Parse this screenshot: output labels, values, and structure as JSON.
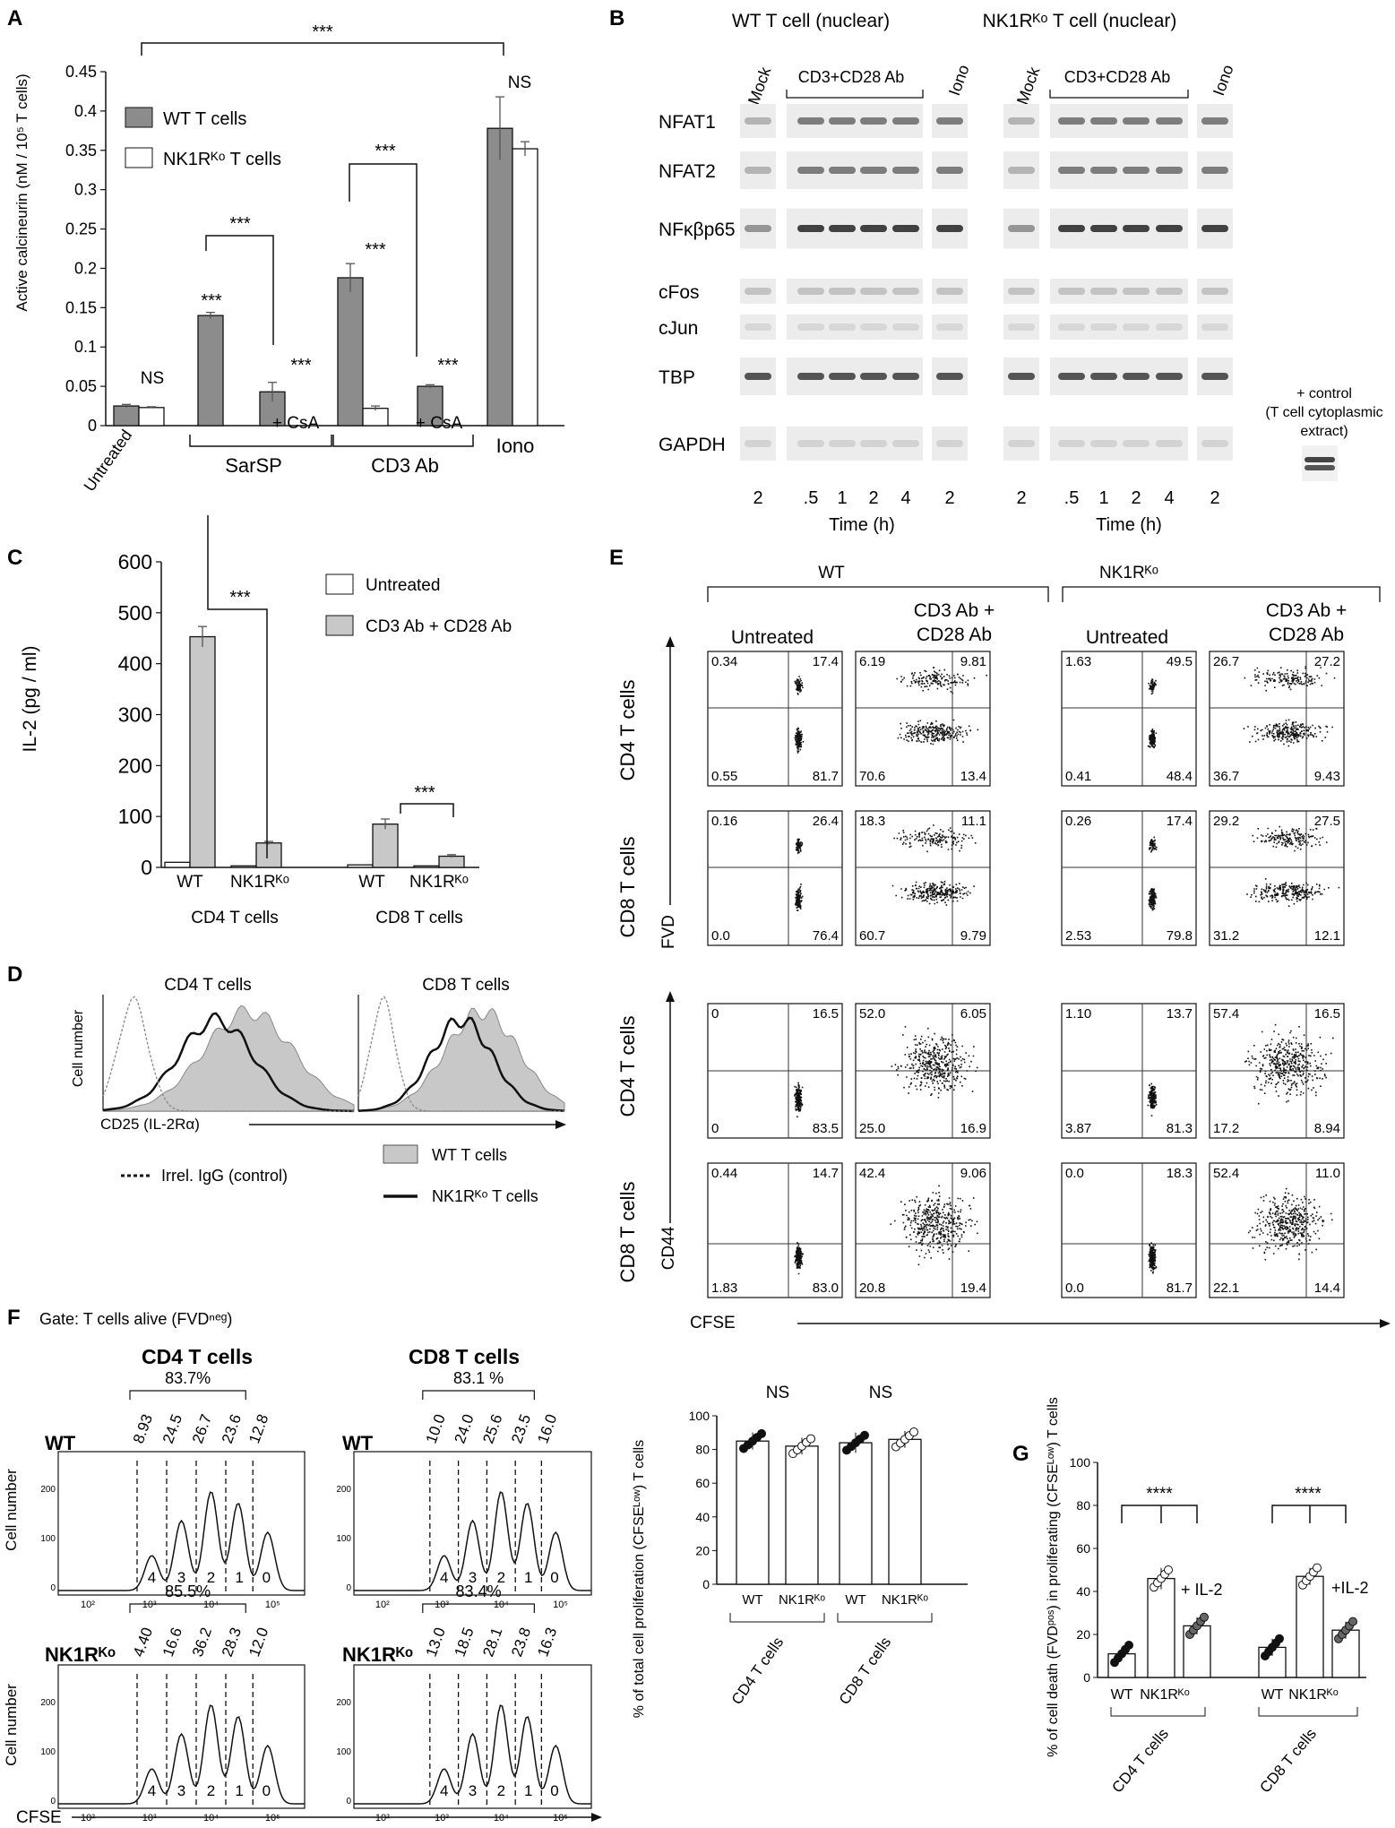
{
  "panel_labels": {
    "A": "A",
    "B": "B",
    "C": "C",
    "D": "D",
    "E": "E",
    "F": "F",
    "G": "G"
  },
  "A": {
    "ylabel": "Active calcineurin (nM / 10⁵ T cells)",
    "legend": [
      "WT T cells",
      "NK1Rᴷᵒ T cells"
    ],
    "yticks": [
      "0",
      "0.05",
      "0.1",
      "0.15",
      "0.2",
      "0.25",
      "0.3",
      "0.35",
      "0.4",
      "0.45"
    ],
    "groups": [
      "Untreated",
      "SarSP",
      "CD3 Ab",
      "Iono"
    ],
    "csa": "+ CsA",
    "sig": "***",
    "ns": "NS"
  },
  "B": {
    "title_wt": "WT T cell (nuclear)",
    "title_ko": "NK1Rᴷᵒ T cell (nuclear)",
    "lane_headers": [
      "Mock",
      "CD3+CD28 Ab",
      "Iono"
    ],
    "rows": [
      "NFAT1",
      "NFAT2",
      "NFκβp65",
      "cFos",
      "cJun",
      "TBP",
      "GAPDH"
    ],
    "times": [
      "2",
      ".5",
      "1",
      "2",
      "4",
      "2"
    ],
    "xlabel": "Time (h)",
    "control_note": [
      "+ control",
      "(T cell cytoplasmic",
      "extract)"
    ]
  },
  "C": {
    "ylabel": "IL-2 (pg / ml)",
    "legend": [
      "Untreated",
      "CD3 Ab + CD28 Ab"
    ],
    "yticks": [
      "0",
      "100",
      "200",
      "300",
      "400",
      "500",
      "600"
    ],
    "xlabels": [
      "WT",
      "NK1Rᴷᵒ",
      "WT",
      "NK1Rᴷᵒ"
    ],
    "groups": [
      "CD4 T cells",
      "CD8 T cells"
    ],
    "sig": "***"
  },
  "D": {
    "titles": [
      "CD4 T cells",
      "CD8 T cells"
    ],
    "ylabel": "Cell number",
    "xlabel": "CD25 (IL-2Rα)",
    "legend": [
      "Irrel. IgG (control)",
      "WT T cells",
      "NK1Rᴷᵒ T cells"
    ]
  },
  "E": {
    "headers": [
      "WT",
      "NK1Rᴷᵒ"
    ],
    "cond": [
      "Untreated",
      "CD3 Ab +",
      "CD28 Ab"
    ],
    "row_labels": [
      "CD4 T cells",
      "CD8 T cells",
      "CD4 T cells",
      "CD8 T cells"
    ],
    "y_axes": [
      "FVD",
      "CD44"
    ],
    "x_axis": "CFSE",
    "quadrants": [
      [
        [
          "0.34",
          "17.4",
          "0.55",
          "81.7"
        ],
        [
          "6.19",
          "9.81",
          "70.6",
          "13.4"
        ],
        [
          "1.63",
          "49.5",
          "0.41",
          "48.4"
        ],
        [
          "26.7",
          "27.2",
          "36.7",
          "9.43"
        ]
      ],
      [
        [
          "0.16",
          "26.4",
          "0.0",
          "76.4"
        ],
        [
          "18.3",
          "11.1",
          "60.7",
          "9.79"
        ],
        [
          "0.26",
          "17.4",
          "2.53",
          "79.8"
        ],
        [
          "29.2",
          "27.5",
          "31.2",
          "12.1"
        ]
      ],
      [
        [
          "0",
          "16.5",
          "0",
          "83.5"
        ],
        [
          "52.0",
          "6.05",
          "25.0",
          "16.9"
        ],
        [
          "1.10",
          "13.7",
          "3.87",
          "81.3"
        ],
        [
          "57.4",
          "16.5",
          "17.2",
          "8.94"
        ]
      ],
      [
        [
          "0.44",
          "14.7",
          "1.83",
          "83.0"
        ],
        [
          "42.4",
          "9.06",
          "20.8",
          "19.4"
        ],
        [
          "0.0",
          "18.3",
          "0.0",
          "81.7"
        ],
        [
          "52.4",
          "11.0",
          "22.1",
          "14.4"
        ]
      ]
    ]
  },
  "F": {
    "gate": "Gate:  T cells alive (FVDⁿᵉᵍ)",
    "titles": [
      "CD4 T cells",
      "CD8 T cells"
    ],
    "rows": [
      "WT",
      "NK1Rᴷᵒ"
    ],
    "totals": [
      [
        "83.7%",
        "83.1 %"
      ],
      [
        "85.5%",
        "83.4%"
      ]
    ],
    "peaks": [
      [
        [
          "8.93",
          "24.5",
          "26.7",
          "23.6",
          "12.8"
        ],
        [
          "10.0",
          "24.0",
          "25.6",
          "23.5",
          "16.0"
        ]
      ],
      [
        [
          "4.40",
          "16.6",
          "36.2",
          "28.3",
          "12.0"
        ],
        [
          "13.0",
          "18.5",
          "28.1",
          "23.8",
          "16.3"
        ]
      ]
    ],
    "divisions": [
      "4",
      "3",
      "2",
      "1",
      "0"
    ],
    "ylabel": "Cell number",
    "xlabel": "CFSE",
    "bar_ylabel": "% of total cell proliferation (CFSEᴸᵒʷ) T cells",
    "bar_yticks": [
      "0",
      "20",
      "40",
      "60",
      "80",
      "100"
    ],
    "bar_x": [
      "WT",
      "NK1Rᴷᵒ",
      "WT",
      "NK1Rᴷᵒ"
    ],
    "bar_groups": [
      "CD4 T cells",
      "CD8 T cells"
    ],
    "ns": "NS"
  },
  "G": {
    "ylabel": "% of cell death (FVDᵖᵒˢ) in proliferating (CFSEᴸᵒʷ) T cells",
    "yticks": [
      "0",
      "20",
      "40",
      "60",
      "80",
      "100"
    ],
    "xlabels": [
      "WT",
      "NK1Rᴷᵒ",
      "WT",
      "NK1Rᴷᵒ"
    ],
    "groups": [
      "CD4 T cells",
      "CD8 T cells"
    ],
    "il2": [
      "+ IL-2",
      "+IL-2"
    ],
    "sig": "****"
  },
  "chart_data": [
    {
      "panel": "A",
      "type": "bar",
      "categories": [
        "Untreated",
        "SarSP",
        "SarSP + CsA",
        "CD3 Ab",
        "CD3 Ab + CsA",
        "Iono"
      ],
      "series": [
        {
          "name": "WT T cells",
          "values": [
            0.025,
            0.14,
            0.043,
            0.188,
            0.05,
            0.378
          ],
          "errors": [
            0.002,
            0.004,
            0.012,
            0.018,
            0.002,
            0.04
          ]
        },
        {
          "name": "NK1Rᴷᵒ T cells",
          "values": [
            0.023,
            null,
            null,
            0.022,
            null,
            0.352
          ],
          "errors": [
            0.001,
            null,
            null,
            0.003,
            null,
            0.009
          ]
        }
      ],
      "ylim": [
        0,
        0.45
      ]
    },
    {
      "panel": "C",
      "type": "bar",
      "categories": [
        "CD4 WT",
        "CD4 NK1Rᴷᵒ",
        "CD8 WT",
        "CD8 NK1Rᴷᵒ"
      ],
      "series": [
        {
          "name": "Untreated",
          "values": [
            10,
            3,
            5,
            3
          ]
        },
        {
          "name": "CD3 Ab + CD28 Ab",
          "values": [
            453,
            48,
            85,
            22
          ],
          "errors": [
            20,
            3,
            10,
            3
          ]
        }
      ],
      "ylim": [
        0,
        600
      ]
    },
    {
      "panel": "F",
      "type": "bar",
      "categories": [
        "CD4 WT",
        "CD4 NK1Rᴷᵒ",
        "CD8 WT",
        "CD8 NK1Rᴷᵒ"
      ],
      "values": [
        85,
        82,
        84,
        86
      ],
      "errors": [
        5,
        5,
        6,
        5
      ],
      "ylim": [
        0,
        100
      ]
    },
    {
      "panel": "G",
      "type": "bar",
      "categories": [
        "CD4 WT",
        "CD4 NK1Rᴷᵒ",
        "CD4 NK1Rᴷᵒ + IL-2",
        "CD8 WT",
        "CD8 NK1Rᴷᵒ",
        "CD8 NK1Rᴷᵒ + IL-2"
      ],
      "values": [
        11,
        46,
        24,
        14,
        47,
        22
      ],
      "errors": [
        3,
        5,
        4,
        4,
        4,
        4
      ],
      "ylim": [
        0,
        100
      ]
    }
  ]
}
